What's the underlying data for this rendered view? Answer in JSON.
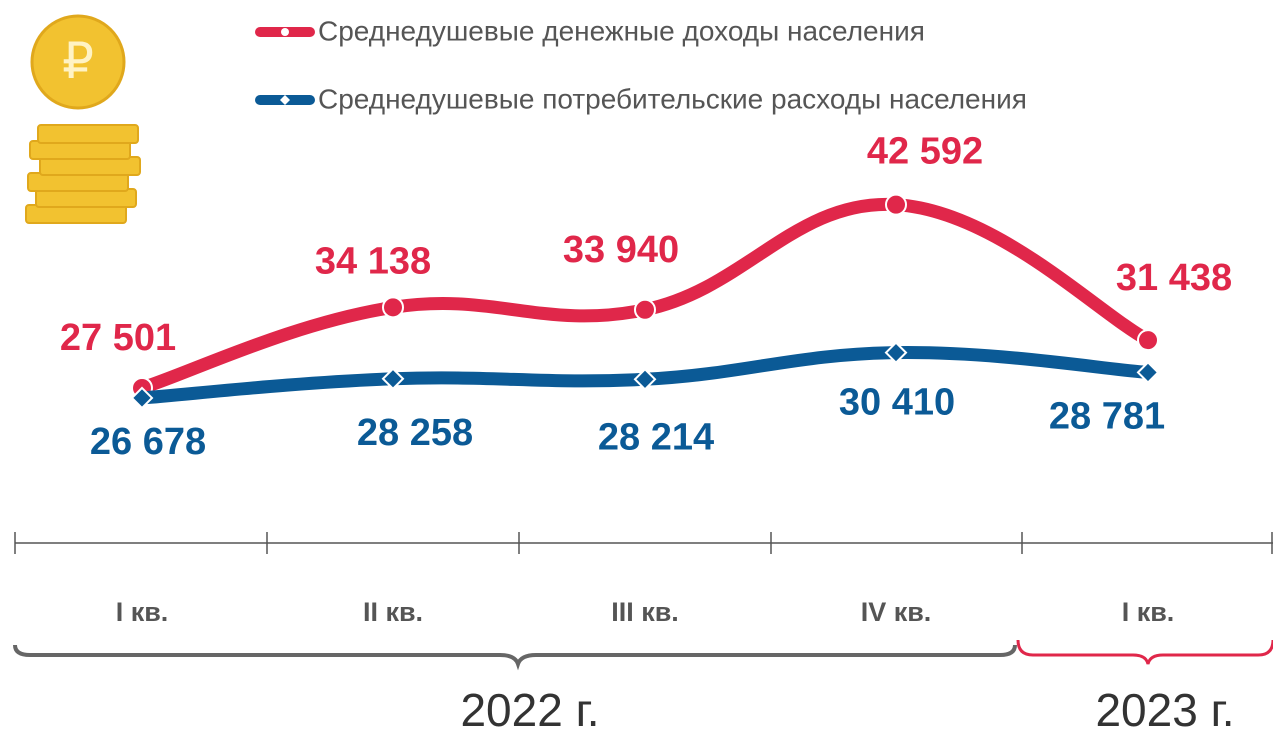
{
  "chart_data": {
    "type": "line",
    "categories": [
      "I кв.",
      "II кв.",
      "III кв.",
      "IV кв.",
      "I кв."
    ],
    "x_groups": [
      {
        "label": "2022 г.",
        "span": [
          0,
          3
        ]
      },
      {
        "label": "2023 г.",
        "span": [
          4,
          4
        ]
      }
    ],
    "series": [
      {
        "name": "Среднедушевые денежные доходы населения",
        "color": "#e0274a",
        "marker": "circle",
        "values": [
          27501,
          34138,
          33940,
          42592,
          31438
        ],
        "value_labels": [
          "27 501",
          "34 138",
          "33 940",
          "42 592",
          "31 438"
        ]
      },
      {
        "name": "Среднедушевые потребительские расходы населения",
        "color": "#0b5a96",
        "marker": "diamond",
        "values": [
          26678,
          28258,
          28214,
          30410,
          28781
        ],
        "value_labels": [
          "26 678",
          "28 258",
          "28 214",
          "30 410",
          "28 781"
        ]
      }
    ]
  }
}
